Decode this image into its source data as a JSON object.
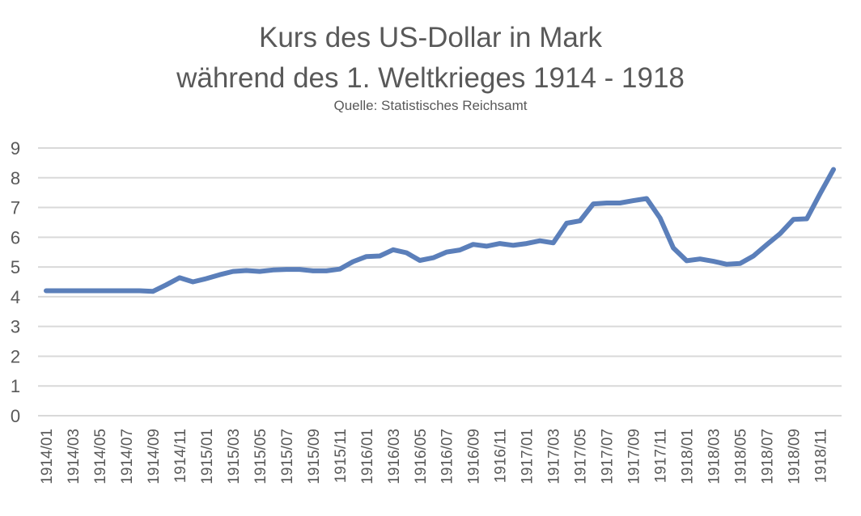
{
  "chart_data": {
    "type": "line",
    "title": "Kurs des US-Dollar in Mark",
    "title_line2": "während des 1. Weltkrieges 1914 - 1918",
    "subtitle": "Quelle: Statistisches Reichsamt",
    "xlabel": "",
    "ylabel": "",
    "ylim": [
      0,
      9
    ],
    "yticks": [
      0,
      1,
      2,
      3,
      4,
      5,
      6,
      7,
      8,
      9
    ],
    "grid": true,
    "legend": "none",
    "line_color": "#5B7FBA",
    "grid_color": "#D9D9D9",
    "x": [
      "1914/01",
      "1914/02",
      "1914/03",
      "1914/04",
      "1914/05",
      "1914/06",
      "1914/07",
      "1914/08",
      "1914/09",
      "1914/10",
      "1914/11",
      "1914/12",
      "1915/01",
      "1915/02",
      "1915/03",
      "1915/04",
      "1915/05",
      "1915/06",
      "1915/07",
      "1915/08",
      "1915/09",
      "1915/10",
      "1915/11",
      "1915/12",
      "1916/01",
      "1916/02",
      "1916/03",
      "1916/04",
      "1916/05",
      "1916/06",
      "1916/07",
      "1916/08",
      "1916/09",
      "1916/10",
      "1916/11",
      "1916/12",
      "1917/01",
      "1917/02",
      "1917/03",
      "1917/04",
      "1917/05",
      "1917/06",
      "1917/07",
      "1917/08",
      "1917/09",
      "1917/10",
      "1917/11",
      "1917/12",
      "1918/01",
      "1918/02",
      "1918/03",
      "1918/04",
      "1918/05",
      "1918/06",
      "1918/07",
      "1918/08",
      "1918/09",
      "1918/10",
      "1918/11",
      "1918/12"
    ],
    "x_tick_labels": [
      "1914/01",
      "1914/03",
      "1914/05",
      "1914/07",
      "1914/09",
      "1914/11",
      "1915/01",
      "1915/03",
      "1915/05",
      "1915/07",
      "1915/09",
      "1915/11",
      "1916/01",
      "1916/03",
      "1916/05",
      "1916/07",
      "1916/09",
      "1916/11",
      "1917/01",
      "1917/03",
      "1917/05",
      "1917/07",
      "1917/09",
      "1917/11",
      "1918/01",
      "1918/03",
      "1918/05",
      "1918/07",
      "1918/09",
      "1918/11"
    ],
    "series": [
      {
        "name": "Kurs des US-Dollar in Mark",
        "values": [
          4.2,
          4.2,
          4.2,
          4.2,
          4.2,
          4.2,
          4.2,
          4.2,
          4.18,
          4.4,
          4.64,
          4.5,
          4.61,
          4.74,
          4.85,
          4.88,
          4.85,
          4.9,
          4.92,
          4.92,
          4.87,
          4.87,
          4.93,
          5.18,
          5.35,
          5.37,
          5.58,
          5.48,
          5.22,
          5.31,
          5.5,
          5.57,
          5.76,
          5.7,
          5.79,
          5.73,
          5.79,
          5.88,
          5.81,
          6.47,
          6.55,
          7.12,
          7.15,
          7.15,
          7.23,
          7.3,
          6.65,
          5.64,
          5.21,
          5.27,
          5.19,
          5.09,
          5.12,
          5.37,
          5.75,
          6.12,
          6.6,
          6.62,
          7.47,
          8.28
        ]
      }
    ]
  }
}
